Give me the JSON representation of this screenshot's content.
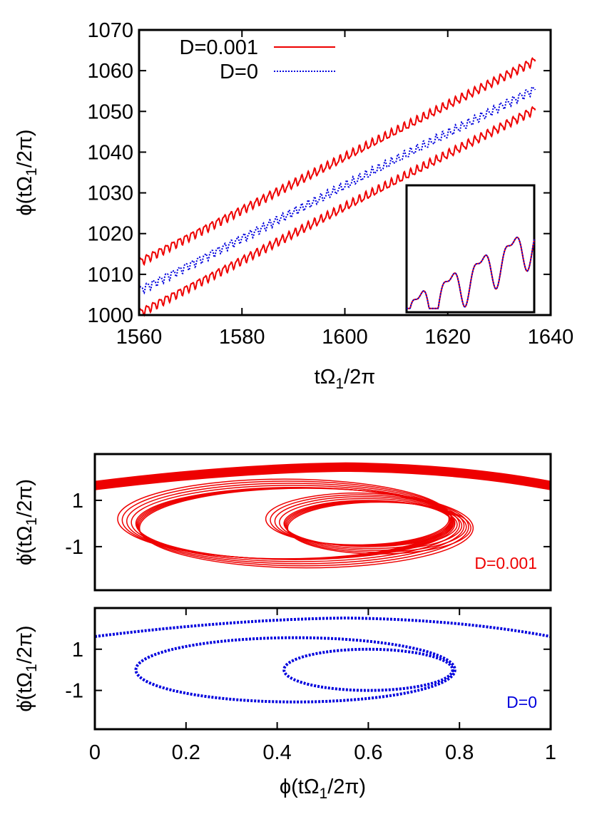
{
  "colors": {
    "d001": "#ee0000",
    "d0": "#0000dd",
    "axis": "#000000"
  },
  "chart_data": [
    {
      "type": "line",
      "xlabel": {
        "main": "tΩ",
        "sub": "1",
        "tail": "/2π"
      },
      "ylabel": {
        "main": "ϕ(tΩ",
        "sub": "1",
        "tail": "/2π)"
      },
      "xlim": [
        1560,
        1640
      ],
      "ylim": [
        1000,
        1070
      ],
      "xticks": [
        "1560",
        "1580",
        "1600",
        "1620",
        "1640"
      ],
      "yticks": [
        "1000",
        "1010",
        "1020",
        "1030",
        "1040",
        "1050",
        "1060",
        "1070"
      ],
      "legend_position": "top-left",
      "series": [
        {
          "name": "D=0.001",
          "style": "solid",
          "color": "#ee0000",
          "x": [
            1560,
            1637
          ],
          "y_start": [
            1013,
            1000.5
          ],
          "y_end": [
            1062.5,
            1050.5
          ]
        },
        {
          "name": "D=0",
          "style": "dotted",
          "color": "#0000dd",
          "x": [
            1560,
            1637
          ],
          "y_start": [
            1006
          ],
          "y_end": [
            1055.5
          ]
        }
      ],
      "inset": {
        "position": "bottom-right",
        "description_free": true
      }
    },
    {
      "type": "scatter",
      "annotation": "D=0.001",
      "ylabel": {
        "main": "ϕ̇(tΩ",
        "sub": "1",
        "tail": "/2π)"
      },
      "xlim": [
        0,
        1
      ],
      "yticks": [
        "1",
        "-1"
      ],
      "color": "#ee0000"
    },
    {
      "type": "scatter",
      "annotation": "D=0",
      "xlabel": {
        "main": "ϕ(tΩ",
        "sub": "1",
        "tail": "/2π)"
      },
      "ylabel": {
        "main": "ϕ̇(tΩ",
        "sub": "1",
        "tail": "/2π)"
      },
      "xlim": [
        0,
        1
      ],
      "xticks": [
        "0",
        "0.2",
        "0.4",
        "0.6",
        "0.8",
        "1"
      ],
      "yticks": [
        "1",
        "-1"
      ],
      "color": "#0000dd"
    }
  ]
}
